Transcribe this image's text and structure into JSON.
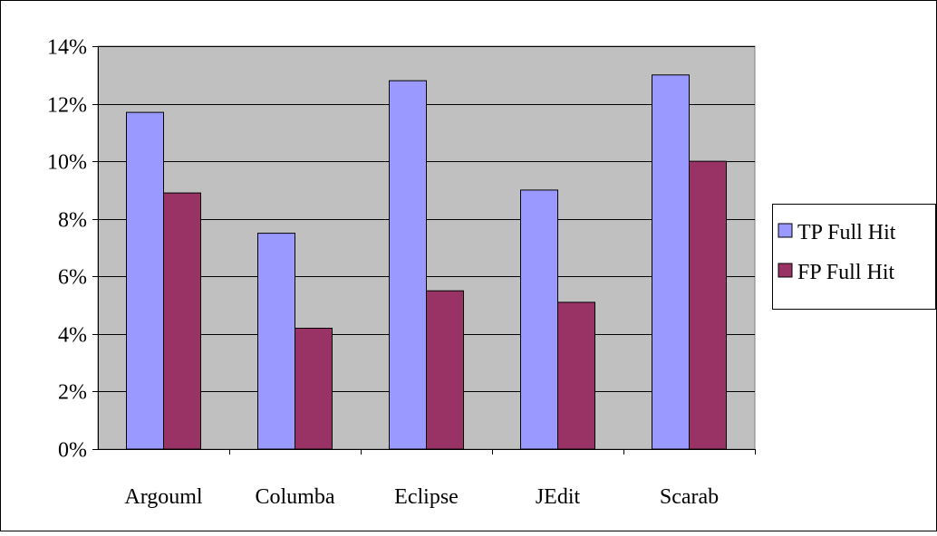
{
  "chart_data": {
    "type": "bar",
    "categories": [
      "Argouml",
      "Columba",
      "Eclipse",
      "JEdit",
      "Scarab"
    ],
    "series": [
      {
        "name": "TP Full Hit",
        "color": "#9999ff",
        "values": [
          11.7,
          7.5,
          12.8,
          9.0,
          13.0
        ]
      },
      {
        "name": "FP Full Hit",
        "color": "#993366",
        "values": [
          8.9,
          4.2,
          5.5,
          5.1,
          10.0
        ]
      }
    ],
    "ylim": [
      0,
      14
    ],
    "yticks": [
      "0%",
      "2%",
      "4%",
      "6%",
      "8%",
      "10%",
      "12%",
      "14%"
    ],
    "ytick_values": [
      0,
      2,
      4,
      6,
      8,
      10,
      12,
      14
    ],
    "title": "",
    "xlabel": "",
    "ylabel": "",
    "grid": true,
    "plot_background": "#c0c0c0",
    "legend_position": "right"
  }
}
